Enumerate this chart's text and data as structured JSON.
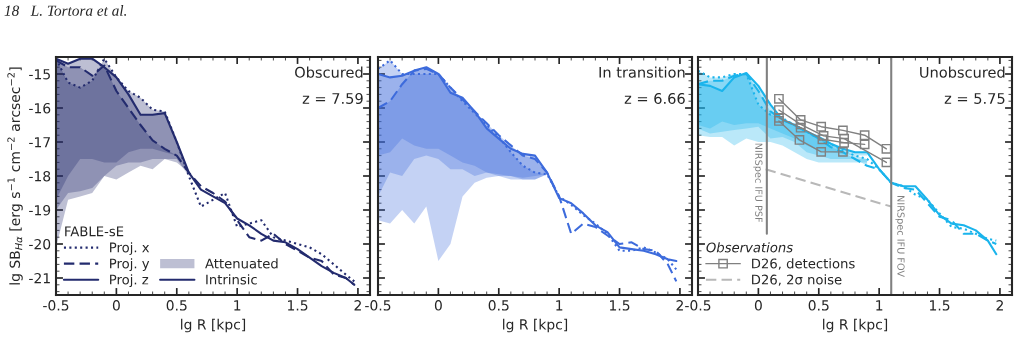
{
  "chart_data": [
    {
      "type": "line",
      "title": "Obscured",
      "subtitle": "z = 7.59",
      "xlabel": "lg R [kpc]",
      "ylabel": "lg SB$_{Hα}$ [erg s$^{−1}$ cm$^{−2}$ arcsec$^{−2}$]",
      "legend_title": "FABLE-sE",
      "legend": "bottom left",
      "annotations": [
        "18   L. Tortora et al.",
        "Attenuated",
        "Intrinsic"
      ],
      "xlim": [
        -0.5,
        2.1
      ],
      "ylim": [
        -21.5,
        -14.5
      ],
      "xticks": [
        -0.5,
        0,
        0.5,
        1,
        1.5,
        2
      ],
      "yticks": [
        -21,
        -20,
        -19,
        -18,
        -17,
        -16,
        -15
      ],
      "x": [
        -0.5,
        -0.4,
        -0.3,
        -0.2,
        -0.1,
        0,
        0.1,
        0.2,
        0.3,
        0.4,
        0.5,
        0.6,
        0.7,
        0.8,
        0.9,
        1.0,
        1.1,
        1.2,
        1.3,
        1.4,
        1.5,
        1.6,
        1.7,
        1.8,
        1.9,
        1.97
      ],
      "series": [
        {
          "name": "Proj. x",
          "color": "#232b6e",
          "line_style": "dotted",
          "values": [
            -14.55,
            -15.25,
            -15.4,
            -15.2,
            -14.55,
            -15.1,
            -15.5,
            -15.7,
            -16.05,
            -16.1,
            -17.0,
            -18.0,
            -18.9,
            -18.7,
            -18.5,
            -19.5,
            -19.4,
            -19.3,
            -19.8,
            -19.9,
            -20.0,
            -20.1,
            -20.3,
            -20.6,
            -20.9,
            -21.1
          ],
          "lower": [
            -19.0,
            -18.5,
            -18.45,
            -18.35,
            -18.0,
            -17.7,
            -17.6,
            -17.6,
            -17.5,
            -17.5,
            -17.5,
            -18.0,
            null,
            null,
            null,
            null,
            null,
            null,
            null,
            null,
            null,
            null,
            null,
            null,
            null,
            null
          ],
          "upper": [
            -14.55,
            -15.25,
            -15.4,
            -15.2,
            -14.55,
            -15.1,
            -15.5,
            -15.7,
            -16.05,
            -16.1,
            -17.0,
            -18.0,
            null,
            null,
            null,
            null,
            null,
            null,
            null,
            null,
            null,
            null,
            null,
            null,
            null,
            null
          ]
        },
        {
          "name": "Proj. y",
          "color": "#232b6e",
          "line_style": "dashed",
          "values": [
            -14.6,
            -14.8,
            -14.8,
            -15.05,
            -14.75,
            -15.5,
            -16.0,
            -16.5,
            -16.95,
            -17.2,
            -17.4,
            -17.9,
            -18.3,
            -18.5,
            -18.75,
            -19.3,
            -19.8,
            -19.9,
            -19.7,
            -20.0,
            -20.2,
            -20.4,
            -20.5,
            -20.9,
            -21.0,
            -21.2
          ],
          "lower": [
            -20.1,
            -18.7,
            -18.6,
            -18.5,
            -18.0,
            -18.1,
            -17.9,
            -17.7,
            -17.8,
            -17.5,
            -17.6,
            -17.9,
            null,
            null,
            null,
            null,
            null,
            null,
            null,
            null,
            null,
            null,
            null,
            null,
            null,
            null
          ],
          "upper": [
            -14.6,
            -14.8,
            -14.8,
            -15.05,
            -14.75,
            -15.5,
            -16.0,
            -16.5,
            -16.95,
            -17.2,
            -17.4,
            -17.9,
            null,
            null,
            null,
            null,
            null,
            null,
            null,
            null,
            null,
            null,
            null,
            null,
            null,
            null
          ]
        },
        {
          "name": "Proj. z",
          "color": "#232b6e",
          "line_style": "solid",
          "values": [
            -14.55,
            -14.7,
            -14.55,
            -14.55,
            -14.8,
            -15.1,
            -15.6,
            -16.2,
            -16.2,
            -16.15,
            -17.0,
            -17.9,
            -18.4,
            -18.6,
            -18.8,
            -19.25,
            -19.45,
            -19.7,
            -19.9,
            -19.95,
            -20.15,
            -20.4,
            -20.65,
            -20.85,
            -21.0,
            -21.2
          ],
          "lower": [
            -18.7,
            -18.0,
            -17.5,
            -17.5,
            -17.6,
            -17.6,
            -17.3,
            -17.2,
            -17.2,
            -17.3,
            -17.4,
            -17.9,
            null,
            null,
            null,
            null,
            null,
            null,
            null,
            null,
            null,
            null,
            null,
            null,
            null,
            null
          ],
          "upper": [
            -14.55,
            -14.7,
            -14.55,
            -14.55,
            -14.8,
            -15.1,
            -15.6,
            -16.2,
            -16.2,
            -16.15,
            -17.0,
            -17.9,
            null,
            null,
            null,
            null,
            null,
            null,
            null,
            null,
            null,
            null,
            null,
            null,
            null,
            null
          ]
        }
      ]
    },
    {
      "type": "line",
      "title": "In transition",
      "subtitle": "z = 6.66",
      "xlabel": "lg R [kpc]",
      "tick_labels": "x",
      "xlim": [
        -0.5,
        2.1
      ],
      "ylim": [
        -21.5,
        -14.5
      ],
      "xticks": [
        -0.5,
        0,
        0.5,
        1,
        1.5,
        2
      ],
      "yticks": [
        -21,
        -20,
        -19,
        -18,
        -17,
        -16,
        -15
      ],
      "x": [
        -0.5,
        -0.4,
        -0.3,
        -0.2,
        -0.1,
        0,
        0.1,
        0.2,
        0.3,
        0.4,
        0.5,
        0.6,
        0.7,
        0.8,
        0.9,
        1.0,
        1.1,
        1.2,
        1.3,
        1.4,
        1.5,
        1.6,
        1.7,
        1.8,
        1.9,
        1.97
      ],
      "series": [
        {
          "color": "#3d6bdc",
          "line_style": "dotted",
          "values": [
            -14.85,
            -14.6,
            -15.0,
            -15.0,
            -15.0,
            -15.0,
            -15.4,
            -15.8,
            -16.15,
            -16.5,
            -16.85,
            -17.3,
            -17.7,
            -17.9,
            -17.95,
            -18.6,
            -18.85,
            -19.15,
            -19.4,
            -19.7,
            -20.2,
            -20.2,
            -20.1,
            -20.25,
            -20.45,
            -20.75
          ],
          "lower": [
            -19.3,
            -19.4,
            -19.0,
            -19.4,
            -18.9,
            -20.5,
            -20.0,
            -18.6,
            -18.2,
            -18.05,
            -18.0,
            -18.0,
            -18.1,
            -18.1,
            -17.95,
            null,
            null,
            null,
            null,
            null,
            null,
            null,
            null,
            null,
            null,
            null
          ],
          "upper": [
            -14.85,
            -14.6,
            -15.0,
            -15.0,
            -15.0,
            -15.0,
            -15.4,
            -15.8,
            -16.15,
            -16.5,
            -16.85,
            -17.3,
            -17.7,
            -17.9,
            -17.95,
            null,
            null,
            null,
            null,
            null,
            null,
            null,
            null,
            null,
            null,
            null
          ]
        },
        {
          "color": "#3d6bdc",
          "line_style": "dashed",
          "values": [
            -16.0,
            -15.8,
            -15.3,
            -14.9,
            -14.85,
            -15.0,
            -15.4,
            -15.75,
            -16.1,
            -16.45,
            -16.8,
            -17.1,
            -17.4,
            -17.5,
            -17.9,
            -18.6,
            -19.7,
            -19.4,
            -19.5,
            -19.75,
            -20.0,
            -19.95,
            -20.15,
            -20.2,
            -20.6,
            -21.1
          ],
          "lower": [
            -18.6,
            -17.9,
            -18.0,
            -17.5,
            -17.4,
            -17.5,
            -17.8,
            -17.8,
            -18.0,
            -17.9,
            -17.95,
            -18.0,
            -18.05,
            -18.0,
            -17.95,
            null,
            null,
            null,
            null,
            null,
            null,
            null,
            null,
            null,
            null,
            null
          ],
          "upper": [
            -16.0,
            -15.8,
            -15.3,
            -14.9,
            -14.85,
            -15.0,
            -15.4,
            -15.75,
            -16.1,
            -16.45,
            -16.8,
            -17.1,
            -17.4,
            -17.5,
            -17.9,
            null,
            null,
            null,
            null,
            null,
            null,
            null,
            null,
            null,
            null,
            null
          ]
        },
        {
          "color": "#3d6bdc",
          "line_style": "solid",
          "values": [
            -15.0,
            -15.1,
            -15.05,
            -14.9,
            -14.8,
            -15.0,
            -15.55,
            -15.7,
            -16.1,
            -16.6,
            -16.9,
            -17.2,
            -17.35,
            -17.4,
            -17.9,
            -18.65,
            -18.8,
            -19.1,
            -19.45,
            -19.65,
            -20.1,
            -20.15,
            -20.2,
            -20.3,
            -20.45,
            -20.5
          ],
          "lower": [
            -17.4,
            -17.3,
            -16.9,
            -17.1,
            -17.2,
            -17.2,
            -17.4,
            -17.6,
            -17.7,
            -17.9,
            -18.0,
            -18.1,
            -18.1,
            -18.1,
            -17.95,
            null,
            null,
            null,
            null,
            null,
            null,
            null,
            null,
            null,
            null,
            null
          ],
          "upper": [
            -15.0,
            -15.1,
            -15.05,
            -14.9,
            -14.8,
            -15.0,
            -15.55,
            -15.7,
            -16.1,
            -16.6,
            -16.9,
            -17.2,
            -17.35,
            -17.4,
            -17.9,
            null,
            null,
            null,
            null,
            null,
            null,
            null,
            null,
            null,
            null,
            null
          ]
        }
      ]
    },
    {
      "type": "line",
      "title": "Unobscured",
      "subtitle": "z = 5.75",
      "xlabel": "lg R [kpc]",
      "tick_labels": "x",
      "legend_title": "Observations",
      "legend": "bottom left",
      "xlim": [
        -0.5,
        2.1
      ],
      "ylim": [
        -21.5,
        -14.5
      ],
      "xticks": [
        -0.5,
        0,
        0.5,
        1,
        1.5,
        2
      ],
      "yticks": [
        -21,
        -20,
        -19,
        -18,
        -17,
        -16,
        -15
      ],
      "x": [
        -0.5,
        -0.4,
        -0.3,
        -0.2,
        -0.1,
        0,
        0.1,
        0.2,
        0.3,
        0.4,
        0.5,
        0.6,
        0.7,
        0.8,
        0.9,
        1.0,
        1.1,
        1.2,
        1.3,
        1.4,
        1.5,
        1.6,
        1.7,
        1.8,
        1.9,
        1.97
      ],
      "ref_lines": [
        {
          "axis": "x",
          "value": 0.07,
          "label": "NIRSpec IFU PSF",
          "color": "#808080"
        },
        {
          "axis": "x",
          "value": 1.1,
          "label": "NIRSpec IFU FOV",
          "color": "#808080"
        }
      ],
      "series": [
        {
          "color": "#1ab4ec",
          "line_style": "dotted",
          "values": [
            -14.9,
            -15.1,
            -15.1,
            -15.0,
            -15.0,
            -15.9,
            -16.2,
            -16.3,
            -16.5,
            -16.7,
            -16.9,
            -17.05,
            -17.25,
            -17.4,
            -17.5,
            -17.8,
            -18.2,
            -18.3,
            -18.55,
            -18.7,
            -19.1,
            -19.5,
            -19.55,
            -19.7,
            -19.85,
            -19.9
          ],
          "lower": [
            -16.8,
            -16.85,
            -16.85,
            -17.1,
            -16.9,
            -17.0,
            -17.0,
            -17.1,
            -17.3,
            -17.5,
            -17.6,
            -17.6,
            -17.6,
            -17.6,
            -17.6,
            null,
            null,
            null,
            null,
            null,
            null,
            null,
            null,
            null,
            null,
            null
          ],
          "upper": [
            -14.9,
            -15.1,
            -15.1,
            -15.0,
            -15.0,
            -15.9,
            -16.2,
            -16.3,
            -16.5,
            -16.7,
            -16.9,
            -17.05,
            -17.25,
            -17.4,
            -17.5,
            null,
            null,
            null,
            null,
            null,
            null,
            null,
            null,
            null,
            null,
            null
          ]
        },
        {
          "color": "#1ab4ec",
          "line_style": "dashed",
          "values": [
            -15.3,
            -15.2,
            -15.2,
            -15.05,
            -15.0,
            -15.5,
            -16.1,
            -16.35,
            -16.5,
            -16.7,
            -16.9,
            -17.15,
            -17.3,
            -17.5,
            -17.7,
            -17.8,
            -18.2,
            -18.35,
            -18.4,
            -18.8,
            -19.2,
            -19.3,
            -19.7,
            -19.7,
            -19.9,
            -20.0
          ],
          "lower": [
            -16.6,
            -16.75,
            -16.7,
            -16.65,
            -16.6,
            -16.55,
            -16.9,
            -16.85,
            -17.0,
            -17.3,
            -17.4,
            -17.5,
            -17.5,
            -17.5,
            -17.5,
            null,
            null,
            null,
            null,
            null,
            null,
            null,
            null,
            null,
            null,
            null
          ],
          "upper": [
            -15.3,
            -15.2,
            -15.2,
            -15.05,
            -15.0,
            -15.5,
            -16.1,
            -16.35,
            -16.5,
            -16.7,
            -16.9,
            -17.15,
            -17.3,
            -17.5,
            -17.7,
            null,
            null,
            null,
            null,
            null,
            null,
            null,
            null,
            null,
            null,
            null
          ]
        },
        {
          "color": "#1ab4ec",
          "line_style": "solid",
          "values": [
            -15.3,
            -15.35,
            -15.5,
            -15.1,
            -14.97,
            -15.35,
            -15.9,
            -16.35,
            -16.5,
            -16.7,
            -16.85,
            -17.05,
            -17.2,
            -17.3,
            -17.3,
            -17.8,
            -18.2,
            -18.3,
            -18.3,
            -18.7,
            -19.15,
            -19.4,
            -19.45,
            -19.6,
            -19.9,
            -20.3
          ],
          "lower": [
            -16.5,
            -16.6,
            -16.4,
            -16.5,
            -16.45,
            -16.45,
            -16.6,
            -16.75,
            -16.9,
            -17.1,
            -17.25,
            -17.3,
            -17.35,
            -17.4,
            -17.4,
            null,
            null,
            null,
            null,
            null,
            null,
            null,
            null,
            null,
            null,
            null
          ],
          "upper": [
            -15.3,
            -15.35,
            -15.5,
            -15.1,
            -14.97,
            -15.35,
            -15.9,
            -16.35,
            -16.5,
            -16.7,
            -16.85,
            -17.05,
            -17.2,
            -17.3,
            -17.3,
            null,
            null,
            null,
            null,
            null,
            null,
            null,
            null,
            null,
            null,
            null
          ]
        },
        {
          "name": "D26, detections",
          "color": "#808080",
          "line_style": "solid",
          "marker": "square",
          "x": [
            0.17,
            0.35,
            0.52,
            0.7,
            0.88,
            1.06
          ],
          "values": [
            -15.73,
            -16.35,
            -16.55,
            -16.66,
            -16.8,
            -17.2
          ]
        },
        {
          "color": "#808080",
          "line_style": "solid",
          "marker": "square",
          "x": [
            0.17,
            0.35,
            0.54,
            0.71,
            1.06
          ],
          "values": [
            -16.06,
            -16.48,
            -16.82,
            -16.9,
            -17.6
          ]
        },
        {
          "color": "#808080",
          "line_style": "solid",
          "marker": "square",
          "x": [
            0.17,
            0.35,
            0.53,
            0.71,
            0.88
          ],
          "values": [
            -16.29,
            -16.58,
            -16.92,
            -17.02,
            -17.07
          ]
        },
        {
          "color": "#808080",
          "line_style": "solid",
          "marker": "square",
          "x": [
            0.17,
            0.34,
            0.52,
            0.7
          ],
          "values": [
            -16.38,
            -16.94,
            -17.29,
            -17.29
          ]
        },
        {
          "name": "D26, 2σ noise",
          "color": "#b8b8b8",
          "line_style": "dashed",
          "x": [
            0.06,
            1.1
          ],
          "values": [
            -17.8,
            -18.9
          ]
        }
      ]
    }
  ]
}
